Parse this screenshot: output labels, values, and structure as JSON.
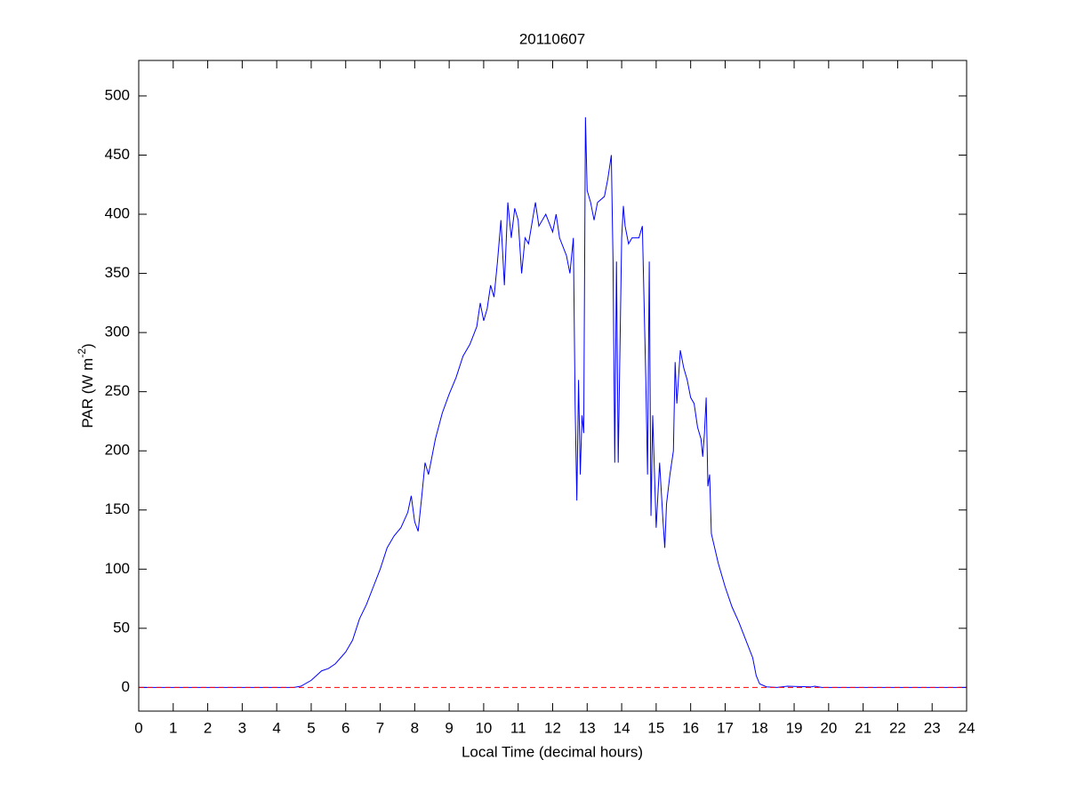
{
  "chart_data": {
    "type": "line",
    "title": "20110607",
    "xlabel": "Local Time (decimal hours)",
    "ylabel": {
      "text": "PAR (W m",
      "superscript": "-2",
      "suffix": ")"
    },
    "x": [
      0,
      4.5,
      4.7,
      5,
      5.3,
      5.5,
      5.7,
      6,
      6.2,
      6.4,
      6.6,
      6.8,
      7,
      7.2,
      7.4,
      7.6,
      7.8,
      7.9,
      8,
      8.1,
      8.2,
      8.3,
      8.4,
      8.6,
      8.8,
      9,
      9.2,
      9.4,
      9.6,
      9.8,
      9.9,
      10,
      10.1,
      10.2,
      10.3,
      10.4,
      10.5,
      10.6,
      10.7,
      10.8,
      10.9,
      11,
      11.1,
      11.2,
      11.3,
      11.5,
      11.6,
      11.8,
      12,
      12.1,
      12.2,
      12.4,
      12.5,
      12.6,
      12.65,
      12.7,
      12.75,
      12.8,
      12.85,
      12.9,
      12.95,
      13,
      13.1,
      13.2,
      13.3,
      13.5,
      13.6,
      13.7,
      13.75,
      13.8,
      13.85,
      13.9,
      14,
      14.05,
      14.1,
      14.2,
      14.3,
      14.5,
      14.6,
      14.7,
      14.75,
      14.8,
      14.85,
      14.9,
      15,
      15.1,
      15.2,
      15.25,
      15.3,
      15.4,
      15.5,
      15.55,
      15.6,
      15.7,
      15.8,
      15.9,
      16,
      16.1,
      16.2,
      16.3,
      16.35,
      16.4,
      16.45,
      16.5,
      16.55,
      16.6,
      16.8,
      17,
      17.2,
      17.4,
      17.6,
      17.8,
      17.9,
      18,
      18.2,
      18.5,
      18.8,
      19.5,
      19.6,
      19.8,
      24
    ],
    "series": [
      {
        "color": "#0000ff",
        "values": [
          0,
          0,
          1,
          6,
          14,
          16,
          20,
          30,
          40,
          58,
          70,
          85,
          100,
          118,
          128,
          135,
          148,
          162,
          140,
          132,
          160,
          190,
          180,
          210,
          232,
          248,
          262,
          280,
          290,
          305,
          325,
          310,
          320,
          340,
          330,
          360,
          395,
          340,
          410,
          380,
          405,
          395,
          350,
          380,
          375,
          410,
          390,
          400,
          385,
          400,
          380,
          365,
          350,
          380,
          240,
          158,
          260,
          180,
          230,
          215,
          482,
          420,
          410,
          395,
          410,
          415,
          430,
          450,
          360,
          190,
          360,
          190,
          380,
          407,
          390,
          375,
          380,
          380,
          390,
          260,
          180,
          360,
          145,
          230,
          135,
          190,
          140,
          118,
          155,
          180,
          200,
          275,
          240,
          285,
          270,
          260,
          245,
          240,
          220,
          210,
          195,
          215,
          245,
          170,
          180,
          130,
          105,
          85,
          68,
          55,
          40,
          25,
          10,
          3,
          0.5,
          0,
          1,
          0.5,
          1,
          0,
          0
        ]
      }
    ],
    "hline": {
      "value": 0,
      "color": "#ff0000",
      "dashed": true
    },
    "xlim": [
      0,
      24
    ],
    "xticks": [
      0,
      1,
      2,
      3,
      4,
      5,
      6,
      7,
      8,
      9,
      10,
      11,
      12,
      13,
      14,
      15,
      16,
      17,
      18,
      19,
      20,
      21,
      22,
      23,
      24
    ],
    "ylim": [
      -20,
      530
    ],
    "yticks": [
      0,
      50,
      100,
      150,
      200,
      250,
      300,
      350,
      400,
      450,
      500
    ]
  }
}
